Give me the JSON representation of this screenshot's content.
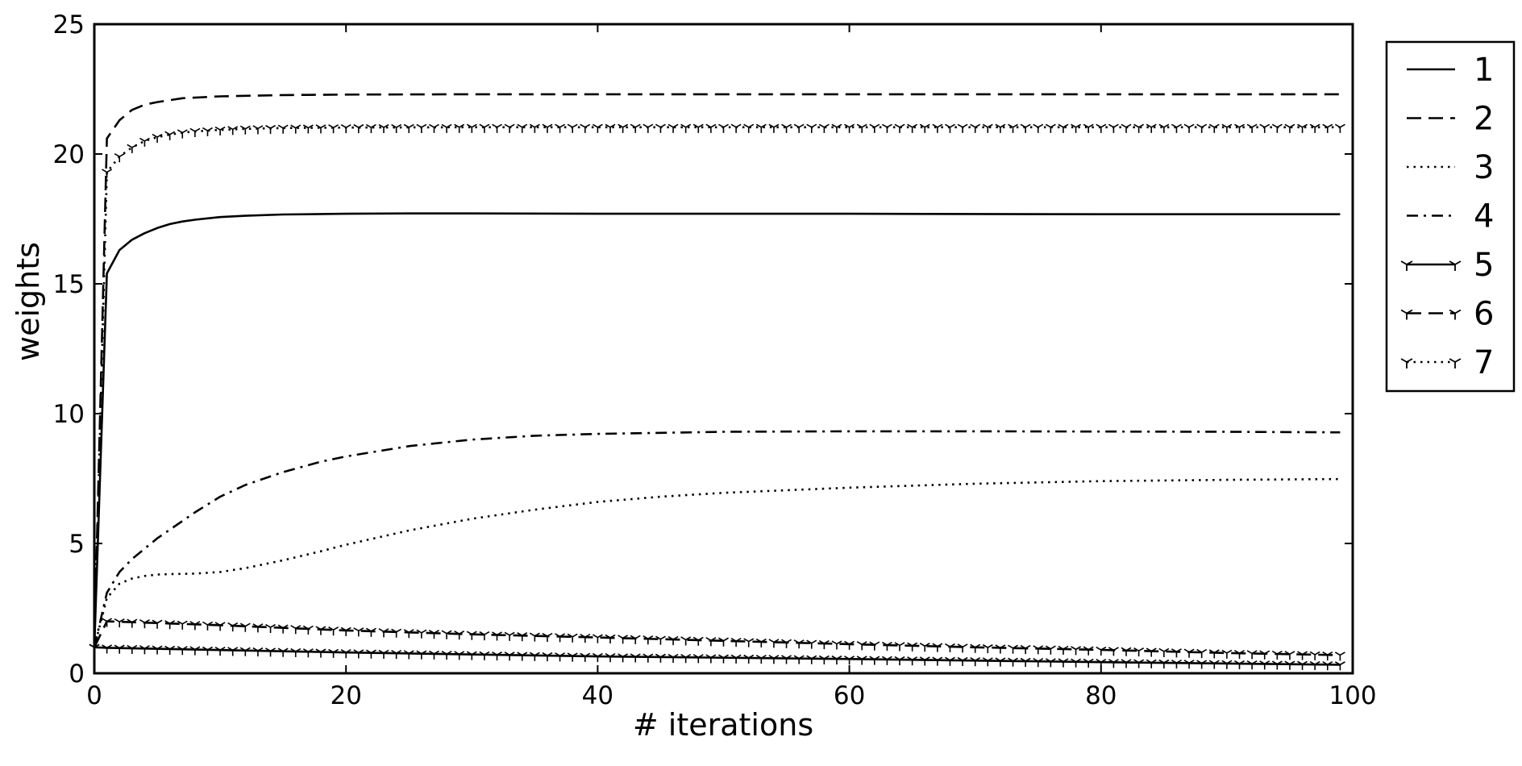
{
  "chart_data": {
    "type": "line",
    "title": "",
    "xlabel": "# iterations",
    "ylabel": "weights",
    "xlim": [
      0,
      100
    ],
    "ylim": [
      0,
      25
    ],
    "xticks": [
      0,
      20,
      40,
      60,
      80,
      100
    ],
    "yticks": [
      0,
      5,
      10,
      15,
      20,
      25
    ],
    "grid": false,
    "legend": {
      "placement": "outside-top-right",
      "entries": [
        "1",
        "2",
        "3",
        "4",
        "5",
        "6",
        "7"
      ]
    },
    "series": [
      {
        "name": "1",
        "style": "solid",
        "marker": "none",
        "color": "#000000",
        "x": [
          0,
          1,
          2,
          3,
          4,
          5,
          6,
          7,
          8,
          10,
          12,
          15,
          20,
          25,
          30,
          40,
          60,
          80,
          99
        ],
        "y": [
          1.0,
          15.4,
          16.3,
          16.7,
          16.95,
          17.15,
          17.3,
          17.4,
          17.47,
          17.57,
          17.62,
          17.67,
          17.7,
          17.71,
          17.71,
          17.7,
          17.7,
          17.68,
          17.68
        ]
      },
      {
        "name": "2",
        "style": "dashed",
        "marker": "none",
        "color": "#000000",
        "x": [
          0,
          1,
          2,
          3,
          4,
          5,
          7,
          10,
          15,
          20,
          30,
          40,
          60,
          80,
          99
        ],
        "y": [
          1.0,
          20.6,
          21.3,
          21.7,
          21.9,
          22.0,
          22.15,
          22.22,
          22.27,
          22.29,
          22.3,
          22.3,
          22.3,
          22.3,
          22.3
        ]
      },
      {
        "name": "3",
        "style": "dotted",
        "marker": "none",
        "color": "#000000",
        "x": [
          0,
          1,
          2,
          3,
          4,
          5,
          6,
          8,
          10,
          12,
          15,
          18,
          20,
          25,
          30,
          35,
          40,
          45,
          50,
          60,
          70,
          80,
          90,
          99
        ],
        "y": [
          1.0,
          2.9,
          3.45,
          3.65,
          3.75,
          3.8,
          3.82,
          3.84,
          3.9,
          4.05,
          4.35,
          4.7,
          4.95,
          5.5,
          5.95,
          6.3,
          6.6,
          6.8,
          6.95,
          7.15,
          7.3,
          7.4,
          7.45,
          7.48
        ]
      },
      {
        "name": "4",
        "style": "dashdot",
        "marker": "none",
        "color": "#000000",
        "x": [
          0,
          1,
          2,
          3,
          5,
          8,
          10,
          12,
          15,
          18,
          20,
          25,
          30,
          35,
          40,
          50,
          60,
          70,
          80,
          90,
          99
        ],
        "y": [
          1.0,
          3.1,
          3.9,
          4.4,
          5.2,
          6.2,
          6.8,
          7.25,
          7.75,
          8.15,
          8.35,
          8.75,
          9.0,
          9.15,
          9.22,
          9.3,
          9.32,
          9.32,
          9.31,
          9.3,
          9.28
        ]
      },
      {
        "name": "5",
        "style": "solid",
        "marker": "tri",
        "color": "#000000",
        "x": [
          0,
          1,
          20,
          40,
          60,
          80,
          99
        ],
        "y": [
          1.0,
          0.98,
          0.8,
          0.65,
          0.55,
          0.43,
          0.33
        ]
      },
      {
        "name": "6",
        "style": "dashed",
        "marker": "tri",
        "color": "#000000",
        "x": [
          0,
          1,
          10,
          20,
          30,
          40,
          50,
          60,
          70,
          80,
          90,
          99
        ],
        "y": [
          1.0,
          2.0,
          1.85,
          1.65,
          1.5,
          1.38,
          1.25,
          1.12,
          1.0,
          0.9,
          0.78,
          0.7
        ]
      },
      {
        "name": "7",
        "style": "dotted",
        "marker": "tri",
        "color": "#000000",
        "x": [
          0,
          1,
          2,
          3,
          4,
          5,
          6,
          7,
          8,
          10,
          12,
          15,
          20,
          30,
          40,
          60,
          80,
          99
        ],
        "y": [
          1.0,
          19.3,
          19.9,
          20.25,
          20.5,
          20.65,
          20.75,
          20.82,
          20.87,
          20.93,
          20.97,
          21.0,
          21.02,
          21.03,
          21.03,
          21.03,
          21.03,
          21.03
        ]
      }
    ]
  }
}
